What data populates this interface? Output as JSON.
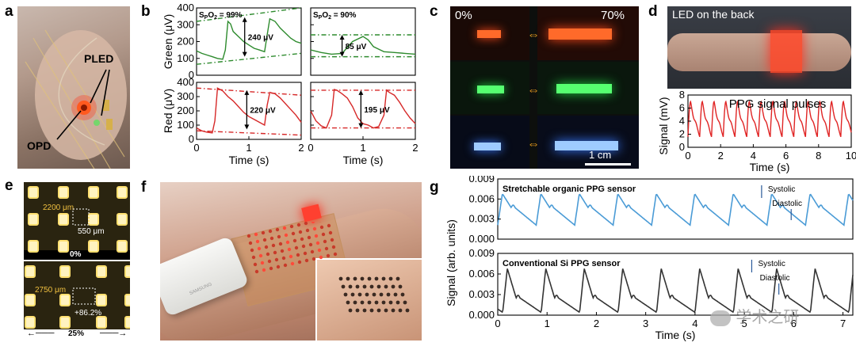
{
  "panel_labels": [
    "a",
    "b",
    "c",
    "d",
    "e",
    "f",
    "g"
  ],
  "panel_a": {
    "pled": "PLED",
    "opd": "OPD"
  },
  "chart_data": [
    {
      "id": "b-green-99",
      "type": "line",
      "series_color": "#2e8b2e",
      "title": "SpO2 = 99%",
      "ylabel": "Green (μV)",
      "xlabel": "",
      "xlim": [
        0,
        2
      ],
      "ylim": [
        0,
        400
      ],
      "yticks": [
        0,
        100,
        200,
        300,
        400
      ],
      "annotation": "240 μV",
      "x": [
        0,
        0.1,
        0.2,
        0.3,
        0.4,
        0.5,
        0.55,
        0.6,
        0.65,
        0.7,
        0.8,
        0.9,
        1.0,
        1.1,
        1.2,
        1.3,
        1.35,
        1.4,
        1.5,
        1.6,
        1.7,
        1.8,
        1.9,
        2.0
      ],
      "y": [
        145,
        130,
        120,
        110,
        100,
        95,
        150,
        320,
        305,
        260,
        230,
        200,
        180,
        160,
        150,
        140,
        240,
        335,
        320,
        280,
        250,
        220,
        200,
        190
      ],
      "envelope_upper": [
        [
          0,
          320
        ],
        [
          2,
          400
        ]
      ],
      "envelope_lower": [
        [
          0,
          65
        ],
        [
          2,
          130
        ]
      ]
    },
    {
      "id": "b-green-90",
      "type": "line",
      "series_color": "#2e8b2e",
      "title": "SpO2 = 90%",
      "ylabel": "",
      "xlabel": "",
      "xlim": [
        0,
        2
      ],
      "ylim": [
        0,
        400
      ],
      "yticks": [
        0,
        100,
        200,
        300,
        400
      ],
      "annotation": "85 μV",
      "x": [
        0,
        0.2,
        0.4,
        0.6,
        0.8,
        1.0,
        1.1,
        1.2,
        1.3,
        1.4,
        1.6,
        1.8,
        2.0
      ],
      "y": [
        150,
        135,
        125,
        130,
        200,
        230,
        210,
        170,
        155,
        140,
        135,
        130,
        125
      ],
      "envelope_upper": [
        [
          0,
          240
        ],
        [
          2,
          240
        ]
      ],
      "envelope_lower": [
        [
          0,
          110
        ],
        [
          2,
          110
        ]
      ]
    },
    {
      "id": "b-red-99",
      "type": "line",
      "series_color": "#d62828",
      "title": "",
      "ylabel": "Red (μV)",
      "xlabel": "Time (s)",
      "xlim": [
        0,
        2
      ],
      "ylim": [
        0,
        400
      ],
      "yticks": [
        0,
        100,
        200,
        300,
        400
      ],
      "xticks": [
        0,
        1,
        2
      ],
      "annotation": "220 μV",
      "x": [
        0,
        0.1,
        0.2,
        0.3,
        0.35,
        0.4,
        0.5,
        0.6,
        0.7,
        0.8,
        0.9,
        1.0,
        1.1,
        1.2,
        1.3,
        1.35,
        1.4,
        1.5,
        1.6,
        1.7,
        1.8,
        1.9,
        2.0
      ],
      "y": [
        80,
        60,
        50,
        45,
        130,
        360,
        340,
        300,
        270,
        230,
        190,
        160,
        140,
        120,
        100,
        240,
        330,
        320,
        290,
        250,
        210,
        170,
        120
      ],
      "envelope_upper": [
        [
          0,
          360
        ],
        [
          2,
          310
        ]
      ],
      "envelope_lower": [
        [
          0,
          60
        ],
        [
          2,
          30
        ]
      ]
    },
    {
      "id": "b-red-90",
      "type": "line",
      "series_color": "#d62828",
      "title": "",
      "ylabel": "",
      "xlabel": "Time (s)",
      "xlim": [
        0,
        2
      ],
      "ylim": [
        0,
        400
      ],
      "yticks": [
        0,
        100,
        200,
        300,
        400
      ],
      "xticks": [
        0,
        1,
        2
      ],
      "annotation": "195 μV",
      "x": [
        0,
        0.1,
        0.2,
        0.3,
        0.4,
        0.45,
        0.5,
        0.6,
        0.7,
        0.8,
        0.9,
        1.0,
        1.1,
        1.2,
        1.3,
        1.4,
        1.45,
        1.5,
        1.6,
        1.7,
        1.8,
        1.9,
        2.0
      ],
      "y": [
        200,
        130,
        95,
        80,
        170,
        350,
        345,
        320,
        290,
        230,
        150,
        110,
        100,
        80,
        90,
        170,
        345,
        330,
        310,
        260,
        200,
        150,
        110
      ],
      "envelope_upper": [
        [
          0,
          345
        ],
        [
          2,
          345
        ]
      ],
      "envelope_lower": [
        [
          0,
          80
        ],
        [
          2,
          80
        ]
      ]
    },
    {
      "id": "d-ppg",
      "type": "line",
      "series_color": "#e02424",
      "title": "PPG signal pulses",
      "ylabel": "Signal (mV)",
      "xlabel": "Time (s)",
      "xlim": [
        0,
        10
      ],
      "ylim": [
        0,
        8
      ],
      "yticks": [
        0,
        2,
        4,
        6,
        8
      ],
      "xticks": [
        0,
        2,
        4,
        6,
        8,
        10
      ],
      "period_s": 0.72,
      "trough_mV": 1.6,
      "peak_mV": 7.0,
      "start_s": 0.0,
      "end_s": 10.0
    },
    {
      "id": "g-organic",
      "type": "line",
      "series_color": "#4a9bd6",
      "title": "Stretchable organic PPG sensor",
      "ylabel": "",
      "xlabel": "",
      "xlim": [
        0,
        7.2
      ],
      "ylim": [
        0,
        0.009
      ],
      "yticks": [
        "0.000",
        "0.003",
        "0.006",
        "0.009"
      ],
      "period_s": 0.78,
      "first_peak_s": 0.78,
      "peak": 0.0068,
      "notch": 0.0047,
      "trough": 0.0021,
      "annotations": [
        "Systolic",
        "Diastolic"
      ]
    },
    {
      "id": "g-si",
      "type": "line",
      "series_color": "#333333",
      "title": "Conventional Si PPG sensor",
      "ylabel": "Signal (arb. units)",
      "xlabel": "Time (s)",
      "xlim": [
        0,
        7.2
      ],
      "ylim": [
        0,
        0.009
      ],
      "yticks": [
        "0.000",
        "0.003",
        "0.006",
        "0.009"
      ],
      "xticks": [
        0,
        1,
        2,
        3,
        4,
        5,
        6,
        7
      ],
      "period_s": 0.78,
      "first_peak_s": 0.1,
      "peak": 0.0068,
      "notch": 0.0025,
      "trough": 0.0004,
      "annotations": [
        "Systolic",
        "Diastolic"
      ]
    }
  ],
  "panel_c": {
    "pct_left": "0%",
    "pct_right": "70%",
    "scale": "1 cm"
  },
  "panel_d": {
    "caption": "LED on the back"
  },
  "panel_e": {
    "dist_top": "2200 μm",
    "gap_top": "550 μm",
    "strain_top": "0%",
    "dist_bottom": "2750 μm",
    "gap_bottom": "+86.2%",
    "strain_bottom": "25%"
  },
  "panel_f": {
    "device_text": "SAMSUNG"
  },
  "watermark": "学术之研",
  "accent": {
    "green": "#2e8b2e",
    "red": "#d62828",
    "blue": "#4a9bd6",
    "orange": "#f0a020"
  }
}
